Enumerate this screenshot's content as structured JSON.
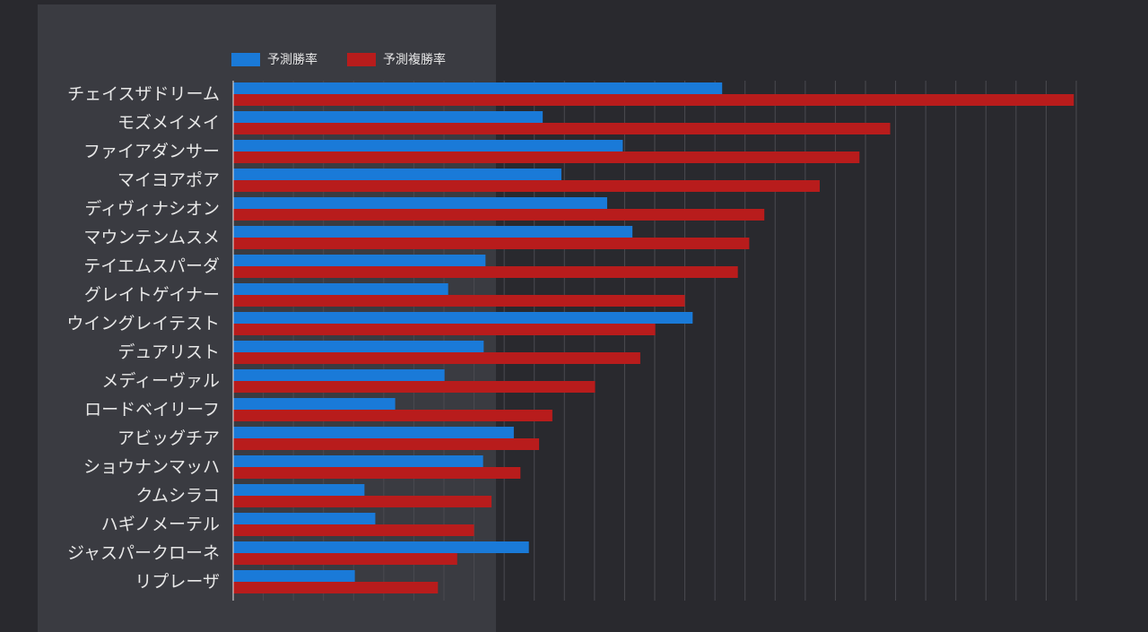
{
  "chart_data": {
    "type": "bar",
    "orientation": "horizontal",
    "title": "",
    "xlabel": "",
    "ylabel": "",
    "legend_position": "top",
    "grid": true,
    "xlim": [
      0,
      140
    ],
    "categories": [
      "チェイスザドリーム",
      "モズメイメイ",
      "ファイアダンサー",
      "マイヨアポア",
      "ディヴィナシオン",
      "マウンテンムスメ",
      "テイエムスパーダ",
      "グレイトゲイナー",
      "ウイングレイテスト",
      "デュアリスト",
      "メディーヴァル",
      "ロードベイリーフ",
      "アビッグチア",
      "ショウナンマッハ",
      "クムシラコ",
      "ハギノメーテル",
      "ジャスパークローネ",
      "リプレーザ"
    ],
    "series": [
      {
        "name": "予測勝率",
        "color": "#1a7ad8",
        "values": [
          81.2,
          51.4,
          64.7,
          54.5,
          62.1,
          66.3,
          41.9,
          35.7,
          76.3,
          41.6,
          35.1,
          26.9,
          46.6,
          41.5,
          21.8,
          23.6,
          49.1,
          20.2
        ]
      },
      {
        "name": "予測複勝率",
        "color": "#b81c1c",
        "values": [
          139.6,
          109.1,
          104.0,
          97.4,
          88.2,
          85.7,
          83.8,
          75.0,
          70.1,
          67.6,
          60.1,
          53.0,
          50.8,
          47.7,
          42.9,
          40.0,
          37.2,
          34.0
        ]
      }
    ]
  }
}
